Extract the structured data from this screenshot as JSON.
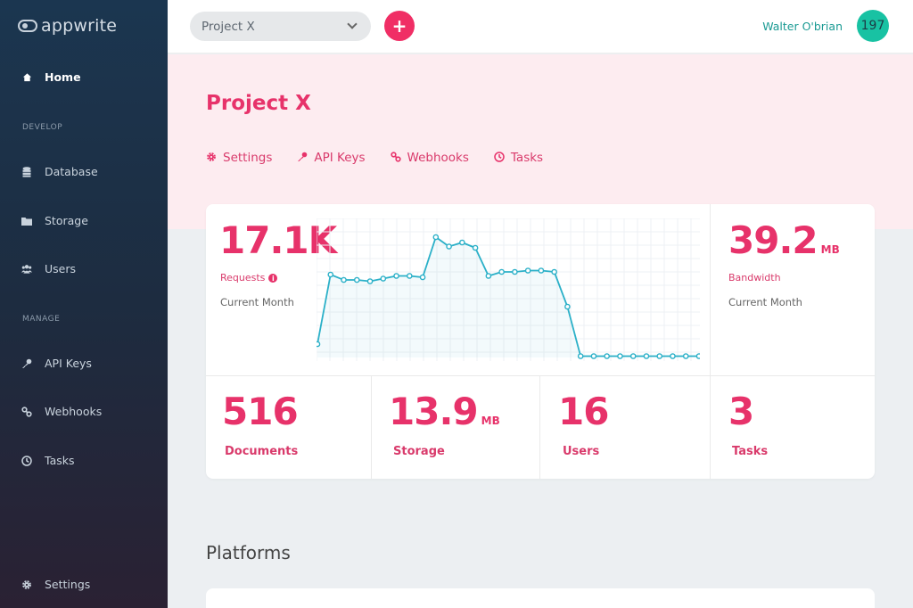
{
  "app": {
    "logo_text": "appwrite"
  },
  "sidebar": {
    "home": {
      "label": "Home",
      "icon": "home-icon"
    },
    "sections": {
      "develop": "DEVELOP",
      "manage": "MANAGE"
    },
    "develop_items": [
      {
        "label": "Database",
        "icon": "database-icon"
      },
      {
        "label": "Storage",
        "icon": "folder-icon"
      },
      {
        "label": "Users",
        "icon": "users-icon"
      }
    ],
    "manage_items": [
      {
        "label": "API Keys",
        "icon": "key-icon"
      },
      {
        "label": "Webhooks",
        "icon": "webhook-icon"
      },
      {
        "label": "Tasks",
        "icon": "clock-icon"
      }
    ],
    "settings": {
      "label": "Settings",
      "icon": "gear-icon"
    }
  },
  "header": {
    "project_select": "Project X",
    "add_button": "+",
    "user_name": "Walter O'brian",
    "avatar_text": "197"
  },
  "project": {
    "title": "Project X",
    "tabs": [
      {
        "label": "Settings",
        "icon": "gear-icon"
      },
      {
        "label": "API Keys",
        "icon": "key-icon"
      },
      {
        "label": "Webhooks",
        "icon": "webhook-icon"
      },
      {
        "label": "Tasks",
        "icon": "clock-icon"
      }
    ]
  },
  "stats": {
    "requests": {
      "value": "17.1K",
      "label": "Requests",
      "sub": "Current Month"
    },
    "bandwidth": {
      "value": "39.2",
      "unit": "MB",
      "label": "Bandwidth",
      "sub": "Current Month"
    },
    "documents": {
      "value": "516",
      "label": "Documents"
    },
    "storage": {
      "value": "13.9",
      "unit": "MB",
      "label": "Storage"
    },
    "users": {
      "value": "16",
      "label": "Users"
    },
    "tasks": {
      "value": "3",
      "label": "Tasks"
    }
  },
  "platforms": {
    "title": "Platforms"
  },
  "colors": {
    "accent": "#f02e65",
    "teal": "#18c2a3",
    "line": "#2bb0c8"
  },
  "chart_data": {
    "type": "line",
    "title": "",
    "series": [
      {
        "values": [
          0.1,
          0.62,
          0.58,
          0.58,
          0.57,
          0.59,
          0.61,
          0.61,
          0.6,
          0.9,
          0.83,
          0.86,
          0.82,
          0.61,
          0.64,
          0.64,
          0.65,
          0.65,
          0.64,
          0.38,
          0.01,
          0.01,
          0.01,
          0.01,
          0.01,
          0.01,
          0.01,
          0.01,
          0.01,
          0.01
        ]
      }
    ],
    "ylim": [
      0,
      1
    ],
    "grid": true
  }
}
